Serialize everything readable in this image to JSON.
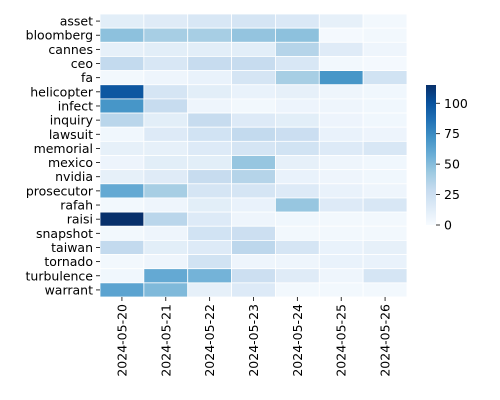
{
  "chart_data": {
    "type": "heatmap",
    "title": "",
    "xlabel": "",
    "ylabel": "",
    "x": [
      "2024-05-20",
      "2024-05-21",
      "2024-05-22",
      "2024-05-23",
      "2024-05-24",
      "2024-05-25",
      "2024-05-26"
    ],
    "y": [
      "asset",
      "bloomberg",
      "cannes",
      "ceo",
      "fa",
      "helicopter",
      "infect",
      "inquiry",
      "lawsuit",
      "memorial",
      "mexico",
      "nvidia",
      "prosecutor",
      "rafah",
      "raisi",
      "snapshot",
      "taiwan",
      "tornado",
      "turbulence",
      "warrant"
    ],
    "values": [
      [
        12,
        14,
        18,
        20,
        17,
        10,
        3
      ],
      [
        48,
        40,
        40,
        46,
        48,
        2,
        3
      ],
      [
        10,
        12,
        12,
        12,
        35,
        14,
        5
      ],
      [
        30,
        18,
        28,
        28,
        18,
        3,
        2
      ],
      [
        3,
        5,
        8,
        20,
        40,
        70,
        22
      ],
      [
        98,
        20,
        12,
        8,
        10,
        5,
        4
      ],
      [
        70,
        28,
        5,
        3,
        6,
        5,
        4
      ],
      [
        33,
        12,
        28,
        15,
        12,
        6,
        4
      ],
      [
        4,
        15,
        22,
        30,
        26,
        8,
        6
      ],
      [
        10,
        10,
        15,
        20,
        22,
        15,
        18
      ],
      [
        6,
        12,
        12,
        45,
        10,
        5,
        4
      ],
      [
        10,
        14,
        28,
        35,
        8,
        5,
        4
      ],
      [
        60,
        40,
        20,
        20,
        15,
        8,
        5
      ],
      [
        3,
        5,
        12,
        8,
        45,
        15,
        18
      ],
      [
        115,
        33,
        15,
        5,
        4,
        3,
        3
      ],
      [
        3,
        5,
        22,
        25,
        3,
        3,
        3
      ],
      [
        30,
        12,
        15,
        32,
        20,
        8,
        10
      ],
      [
        3,
        5,
        22,
        5,
        5,
        8,
        8
      ],
      [
        4,
        60,
        55,
        25,
        14,
        5,
        20
      ],
      [
        63,
        52,
        10,
        15,
        3,
        3,
        3
      ]
    ],
    "colorbar": {
      "min": 0,
      "max": 115,
      "ticks": [
        0,
        25,
        50,
        75,
        100
      ],
      "colormap": "Blues"
    },
    "grid_lines": true,
    "cell_border_color": "#ffffff"
  }
}
